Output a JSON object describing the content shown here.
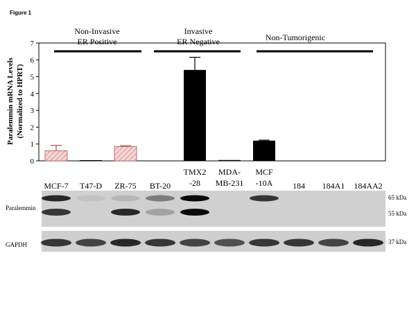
{
  "figure_label": "Figure 1",
  "groups": [
    {
      "line1": "Non-Invasive",
      "line2": "ER Positive"
    },
    {
      "line1": "Invasive",
      "line2": "ER Negative"
    },
    {
      "line1": "Non-Tumorigenic",
      "line2": ""
    }
  ],
  "chart_data": {
    "type": "bar",
    "categories": [
      "MCF-7",
      "T47-D",
      "ZR-75",
      "BT-20",
      "TMX2-28",
      "MDA-MB-231",
      "MCF-10A",
      "184",
      "184A1",
      "184AA2"
    ],
    "values": [
      0.6,
      0.02,
      0.85,
      0,
      5.4,
      0.05,
      1.2,
      0,
      0,
      0
    ],
    "errors": [
      0.32,
      0,
      0.05,
      0,
      0.75,
      0,
      0.03,
      0,
      0,
      0
    ],
    "ylabel_line1": "Paralemmin mRNA Levels",
    "ylabel_line2": "(Normalized to HPRT)",
    "ylim": [
      0,
      7
    ],
    "yticks": [
      "0",
      "1",
      "2",
      "3",
      "4",
      "5",
      "6",
      "7"
    ],
    "fill_colors": [
      "#f2c8c8",
      "#000000",
      "#f2c8c8",
      "#000000",
      "#000000",
      "#000000",
      "#000000",
      "#000000",
      "#000000",
      "#000000"
    ],
    "hatched": [
      true,
      false,
      true,
      false,
      false,
      false,
      false,
      false,
      false,
      false
    ]
  },
  "lanes": [
    {
      "line1": "MCF-7",
      "line2": ""
    },
    {
      "line1": "T47-D",
      "line2": ""
    },
    {
      "line1": "ZR-75",
      "line2": ""
    },
    {
      "line1": "BT-20",
      "line2": ""
    },
    {
      "line1": "TMX2",
      "line2": "-28"
    },
    {
      "line1": "MDA-",
      "line2": "MB-231"
    },
    {
      "line1": "MCF",
      "line2": "-10A"
    },
    {
      "line1": "184",
      "line2": ""
    },
    {
      "line1": "184A1",
      "line2": ""
    },
    {
      "line1": "184AA2",
      "line2": ""
    }
  ],
  "blots": [
    {
      "label": "Paralemmin",
      "markers": [
        "65 kDa",
        "55 kDa"
      ],
      "band_intensity_upper": [
        0.9,
        0.1,
        0.2,
        0.55,
        1.0,
        0,
        0.85,
        0,
        0,
        0
      ],
      "band_intensity_lower": [
        0.85,
        0,
        0.9,
        0.35,
        1.0,
        0,
        0,
        0,
        0,
        0
      ]
    },
    {
      "label": "GAPDH",
      "markers": [
        "37 kDa"
      ],
      "band_intensity": [
        0.85,
        0.8,
        0.9,
        0.85,
        0.8,
        0.75,
        0.85,
        0.85,
        0.8,
        0.9
      ]
    }
  ]
}
